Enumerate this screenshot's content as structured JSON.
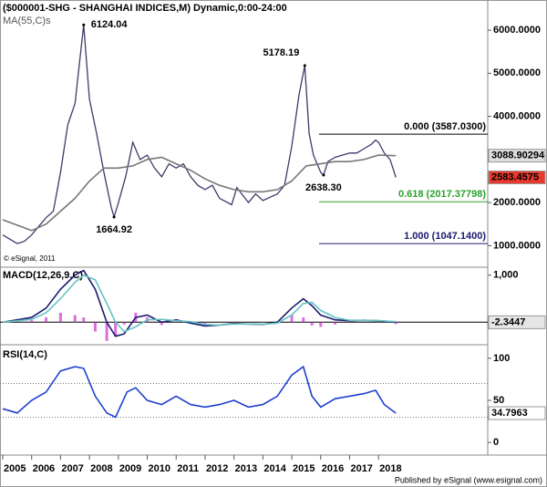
{
  "chart_data": [
    {
      "type": "line",
      "title": "($000001-SHG - SHANGHAI INDICES,M) Dynamic,0:00-24:00",
      "subtitle": "MA(55,C)s",
      "credit": "© eSignal, 2011",
      "ylim": [
        500,
        6700
      ],
      "yticks": [
        {
          "value": 1000,
          "label": "1000.0000"
        },
        {
          "value": 2000,
          "label": "2000.0000"
        },
        {
          "value": 3000,
          "label": "3000.0000"
        },
        {
          "value": 4000,
          "label": "4000.0000"
        },
        {
          "value": 5000,
          "label": "5000.0000"
        },
        {
          "value": 6000,
          "label": "6000.0000"
        }
      ],
      "series": [
        {
          "color": "#3a3a6a",
          "x": [
            2005.0,
            2005.25,
            2005.5,
            2005.75,
            2006.0,
            2006.25,
            2006.5,
            2006.75,
            2007.0,
            2007.25,
            2007.5,
            2007.8,
            2008.0,
            2008.25,
            2008.5,
            2008.75,
            2008.85,
            2009.0,
            2009.25,
            2009.5,
            2009.75,
            2010.0,
            2010.25,
            2010.5,
            2010.75,
            2011.0,
            2011.25,
            2011.5,
            2011.75,
            2012.0,
            2012.25,
            2012.5,
            2012.92,
            2013.1,
            2013.5,
            2013.75,
            2014.0,
            2014.5,
            2014.75,
            2015.0,
            2015.25,
            2015.45,
            2015.6,
            2015.75,
            2016.0,
            2016.1,
            2016.25,
            2016.5,
            2016.75,
            2017.0,
            2017.25,
            2017.5,
            2017.75,
            2017.9,
            2018.0,
            2018.2,
            2018.4,
            2018.5,
            2018.6
          ],
          "values": [
            1250,
            1150,
            1050,
            1100,
            1250,
            1450,
            1650,
            1800,
            2700,
            3800,
            4300,
            6124.04,
            4400,
            3600,
            2700,
            1900,
            1664.92,
            1990,
            2600,
            3400,
            3000,
            3100,
            2800,
            2600,
            2900,
            2800,
            2900,
            2600,
            2400,
            2300,
            2400,
            2100,
            1950,
            2350,
            2000,
            2200,
            2050,
            2200,
            2400,
            3300,
            4500,
            5178.19,
            3600,
            3100,
            2700,
            2638.3,
            2950,
            3050,
            3100,
            3150,
            3150,
            3250,
            3350,
            3450,
            3400,
            3150,
            3000,
            2800,
            2583.4575
          ],
          "last_label": "2583.4575"
        },
        {
          "name": "MA(55,C)s",
          "color": "#777777",
          "x": [
            2005.0,
            2006.0,
            2006.5,
            2007.0,
            2007.5,
            2008.0,
            2008.5,
            2009.0,
            2009.5,
            2010.0,
            2010.5,
            2011.0,
            2011.5,
            2012.0,
            2012.5,
            2013.0,
            2013.5,
            2014.0,
            2014.5,
            2015.0,
            2015.5,
            2016.0,
            2016.5,
            2017.0,
            2017.5,
            2018.0,
            2018.6
          ],
          "values": [
            1600,
            1350,
            1500,
            1800,
            2100,
            2500,
            2800,
            2800,
            2850,
            3000,
            3050,
            2900,
            2750,
            2550,
            2400,
            2300,
            2250,
            2250,
            2300,
            2500,
            2850,
            2900,
            2950,
            2950,
            3000,
            3100,
            3088.90294
          ],
          "last_label": "3088.90294"
        }
      ],
      "annotations": [
        {
          "label": "6124.04",
          "value": 6124.04,
          "x": 2007.8
        },
        {
          "label": "1664.92",
          "value": 1664.92,
          "x": 2008.85
        },
        {
          "label": "5178.19",
          "value": 5178.19,
          "x": 2015.45
        },
        {
          "label": "2638.30",
          "value": 2638.3,
          "x": 2016.1
        }
      ],
      "levels": [
        {
          "label": "0.000 (3587.0300)",
          "value": 3587.03,
          "color": "#000000"
        },
        {
          "label": "0.618 (2017.37798)",
          "value": 2017.37798,
          "color": "#2ca02c"
        },
        {
          "label": "1.000 (1047.1400)",
          "value": 1047.14,
          "color": "#1a1a6e"
        }
      ]
    },
    {
      "type": "macd",
      "title": "MACD(12,26,9,C)",
      "ylim": [
        -480,
        1150
      ],
      "yticks": [
        {
          "value": 1000,
          "label": "1,000"
        }
      ],
      "x": [
        2005,
        2006,
        2006.5,
        2007,
        2007.5,
        2007.8,
        2008.2,
        2008.6,
        2008.9,
        2009.2,
        2009.6,
        2010,
        2010.5,
        2011,
        2011.5,
        2012,
        2012.5,
        2013,
        2013.5,
        2014,
        2014.5,
        2015,
        2015.4,
        2015.7,
        2016,
        2016.5,
        2017,
        2017.5,
        2018,
        2018.6
      ],
      "series": [
        {
          "color": "#1a1a6e",
          "values": [
            0,
            100,
            300,
            700,
            1000,
            1100,
            700,
            0,
            -300,
            -250,
            100,
            150,
            0,
            50,
            -20,
            -80,
            -60,
            -30,
            -40,
            -50,
            0,
            300,
            500,
            350,
            150,
            50,
            30,
            40,
            30,
            -2.3447
          ],
          "last_label": "-2.3447"
        },
        {
          "color": "#66c2c2",
          "values": [
            0,
            60,
            200,
            500,
            850,
            1000,
            900,
            400,
            0,
            -200,
            -100,
            50,
            60,
            30,
            10,
            -50,
            -60,
            -40,
            -40,
            -45,
            -20,
            150,
            400,
            420,
            250,
            100,
            40,
            40,
            35,
            10
          ]
        },
        {
          "color": "#cc33cc",
          "kind": "histogram",
          "values": [
            0,
            40,
            100,
            200,
            150,
            100,
            -200,
            -400,
            -300,
            -50,
            200,
            100,
            -60,
            20,
            -30,
            -30,
            0,
            10,
            0,
            -5,
            20,
            150,
            100,
            -70,
            -100,
            -50,
            -10,
            0,
            -5,
            -40
          ]
        }
      ]
    },
    {
      "type": "rsi",
      "title": "RSI(14,C)",
      "ylim": [
        -15,
        115
      ],
      "yticks": [
        0,
        50,
        100
      ],
      "levels": [
        30,
        70
      ],
      "xlim": [
        2004.905,
        2021.78
      ],
      "xticks": [
        2005,
        2006,
        2007,
        2008,
        2009,
        2010,
        2011,
        2012,
        2013,
        2014,
        2015,
        2016,
        2017,
        2018
      ],
      "footer": "Published by eSignal (www.esignal.com)",
      "series": [
        {
          "color": "#1f3fd0",
          "x": [
            2005,
            2005.5,
            2006,
            2006.5,
            2007,
            2007.5,
            2007.8,
            2008.2,
            2008.6,
            2008.9,
            2009.3,
            2009.6,
            2010,
            2010.5,
            2011,
            2011.5,
            2012,
            2012.5,
            2013,
            2013.5,
            2014,
            2014.5,
            2015,
            2015.4,
            2015.7,
            2016,
            2016.5,
            2017,
            2017.5,
            2017.9,
            2018.2,
            2018.6
          ],
          "values": [
            40,
            35,
            50,
            60,
            85,
            90,
            88,
            55,
            35,
            30,
            60,
            65,
            50,
            45,
            55,
            45,
            42,
            45,
            50,
            42,
            45,
            55,
            80,
            90,
            55,
            42,
            52,
            55,
            58,
            62,
            45,
            34.7963
          ],
          "last_label": "34.7963"
        }
      ]
    }
  ]
}
